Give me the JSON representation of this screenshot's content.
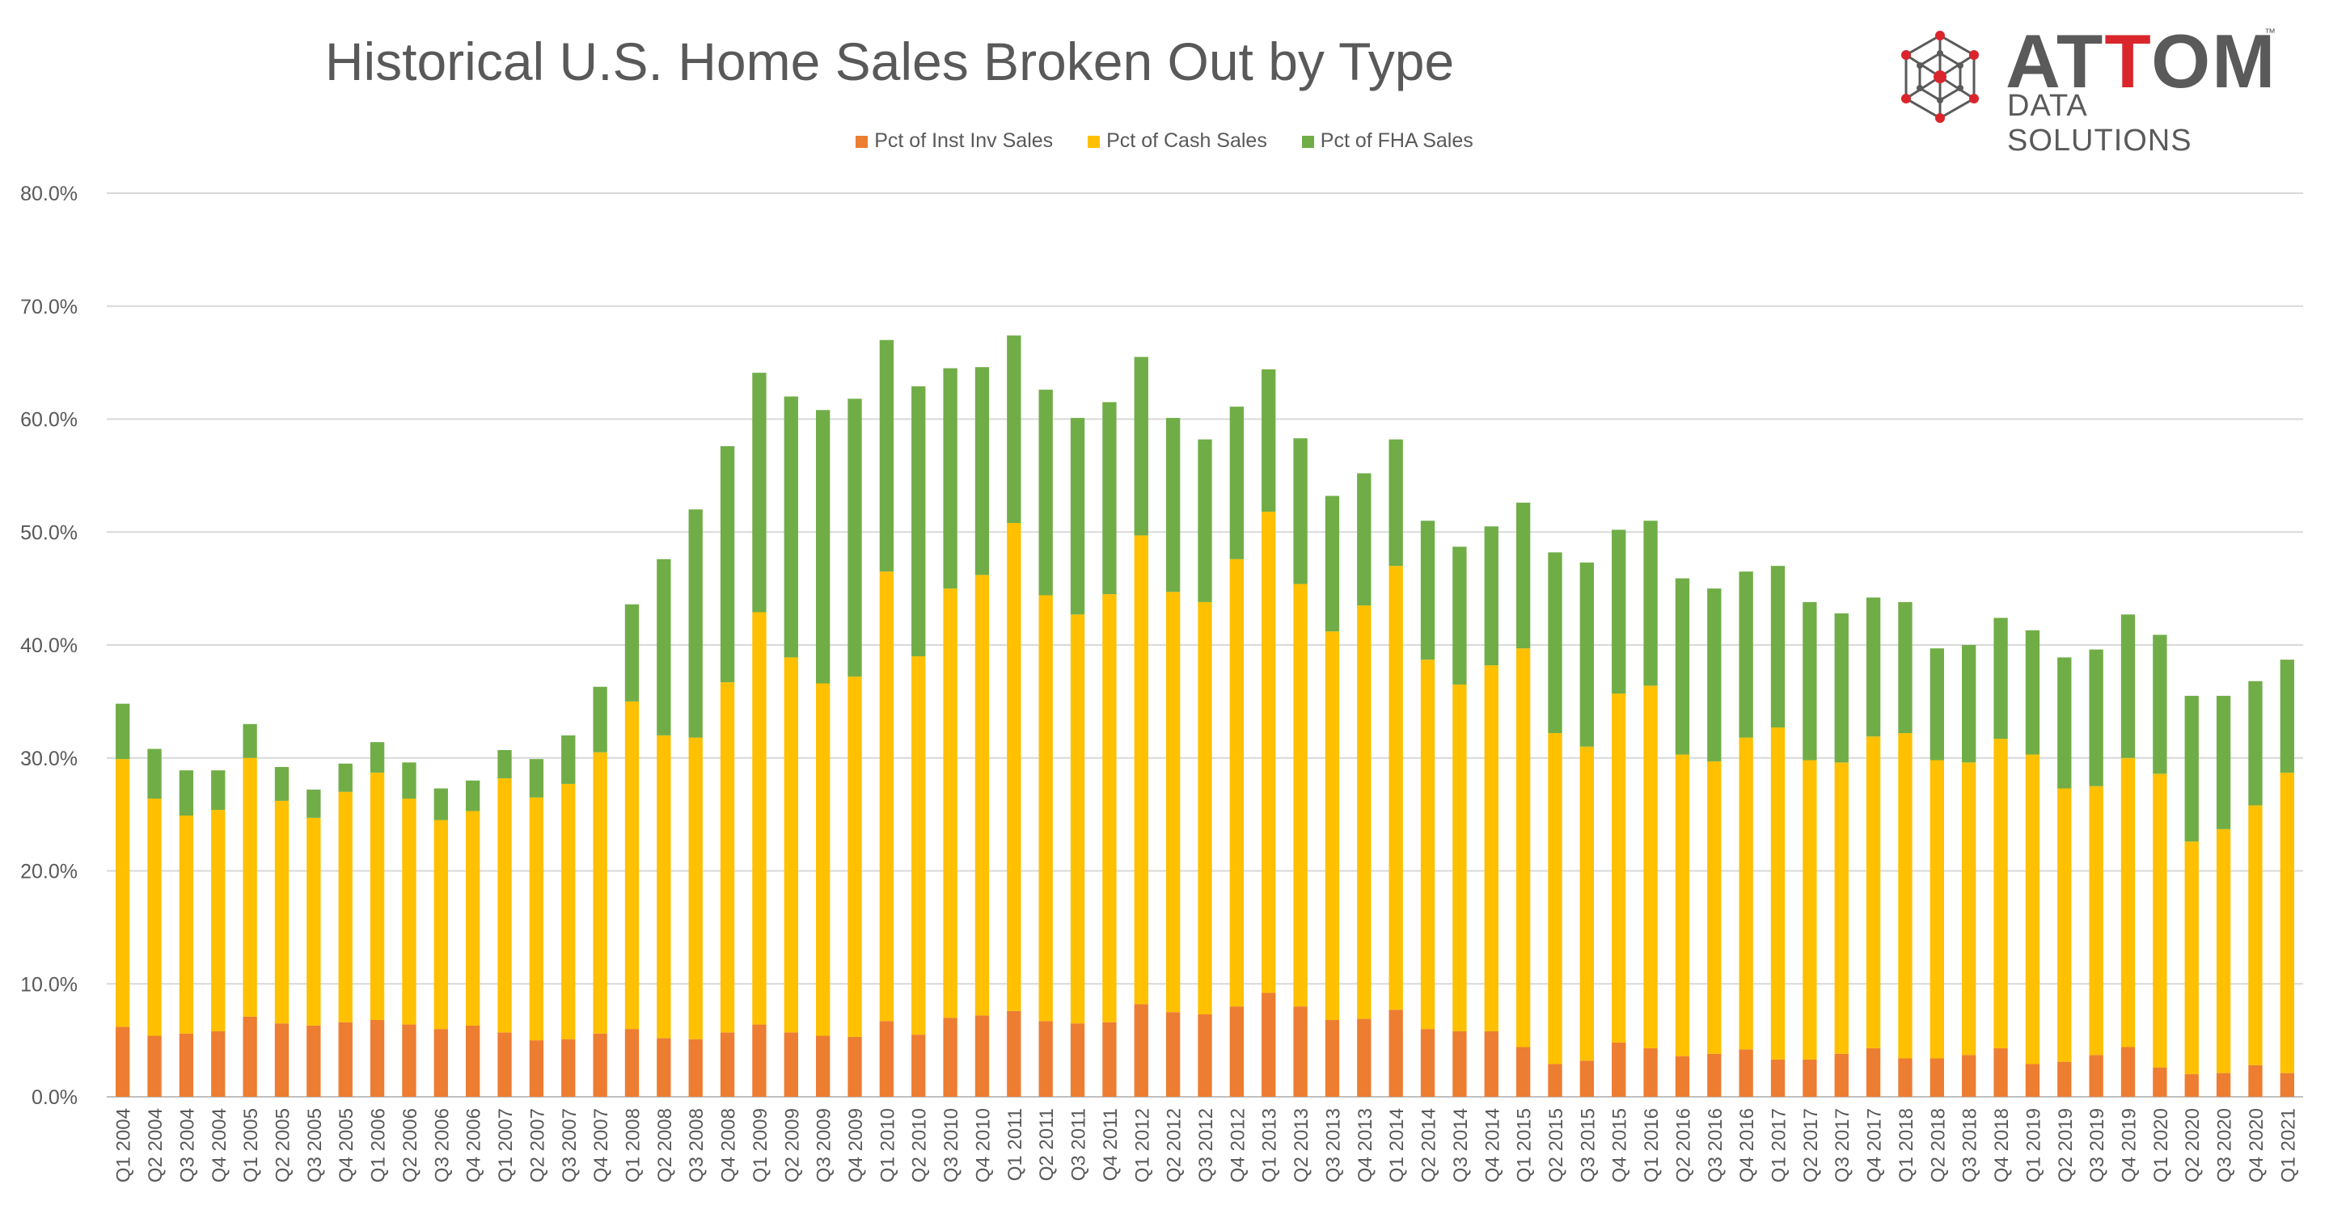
{
  "colors": {
    "inst_inv": "#ED7D31",
    "cash": "#FFC000",
    "fha": "#70AD47",
    "grid": "#D9D9D9",
    "text": "#595959"
  },
  "logo": {
    "word_left": "AT",
    "word_red": "T",
    "word_right": "OM",
    "tm": "™",
    "subtitle": "DATA SOLUTIONS",
    "icon": "attom-network-icon"
  },
  "chart_data": {
    "type": "bar",
    "stacked": true,
    "title": "Historical U.S. Home Sales Broken Out by Type",
    "xlabel": "",
    "ylabel": "",
    "ylim": [
      0,
      80
    ],
    "yticks": [
      "0.0%",
      "10.0%",
      "20.0%",
      "30.0%",
      "40.0%",
      "50.0%",
      "60.0%",
      "70.0%",
      "80.0%"
    ],
    "grid": true,
    "legend_position": "top",
    "categories": [
      "Q1 2004",
      "Q2 2004",
      "Q3 2004",
      "Q4 2004",
      "Q1 2005",
      "Q2 2005",
      "Q3 2005",
      "Q4 2005",
      "Q1 2006",
      "Q2 2006",
      "Q3 2006",
      "Q4 2006",
      "Q1 2007",
      "Q2 2007",
      "Q3 2007",
      "Q4 2007",
      "Q1 2008",
      "Q2 2008",
      "Q3 2008",
      "Q4 2008",
      "Q1 2009",
      "Q2 2009",
      "Q3 2009",
      "Q4 2009",
      "Q1 2010",
      "Q2 2010",
      "Q3 2010",
      "Q4 2010",
      "Q1 2011",
      "Q2 2011",
      "Q3 2011",
      "Q4 2011",
      "Q1 2012",
      "Q2 2012",
      "Q3 2012",
      "Q4 2012",
      "Q1 2013",
      "Q2 2013",
      "Q3 2013",
      "Q4 2013",
      "Q1 2014",
      "Q2 2014",
      "Q3 2014",
      "Q4 2014",
      "Q1 2015",
      "Q2 2015",
      "Q3 2015",
      "Q4 2015",
      "Q1 2016",
      "Q2 2016",
      "Q3 2016",
      "Q4 2016",
      "Q1 2017",
      "Q2 2017",
      "Q3 2017",
      "Q4 2017",
      "Q1 2018",
      "Q2 2018",
      "Q3 2018",
      "Q4 2018",
      "Q1 2019",
      "Q2 2019",
      "Q3 2019",
      "Q4 2019",
      "Q1 2020",
      "Q2 2020",
      "Q3 2020",
      "Q4 2020",
      "Q1 2021"
    ],
    "series": [
      {
        "name": "Pct of Inst Inv Sales",
        "values": [
          6.2,
          5.4,
          5.6,
          5.8,
          7.1,
          6.5,
          6.3,
          6.6,
          6.8,
          6.4,
          6.0,
          6.3,
          5.7,
          5.0,
          5.1,
          5.6,
          6.0,
          5.2,
          5.1,
          5.7,
          6.4,
          5.7,
          5.4,
          5.3,
          6.7,
          5.5,
          7.0,
          7.2,
          7.6,
          6.7,
          6.5,
          6.6,
          8.2,
          7.5,
          7.3,
          8.0,
          9.2,
          8.0,
          6.8,
          6.9,
          7.7,
          6.0,
          5.8,
          5.8,
          4.4,
          2.9,
          3.2,
          4.8,
          4.3,
          3.6,
          3.8,
          4.2,
          3.3,
          3.3,
          3.8,
          4.3,
          3.4,
          3.4,
          3.7,
          4.3,
          2.9,
          3.1,
          3.7,
          4.4,
          2.6,
          2.0,
          2.1,
          2.8,
          2.1
        ]
      },
      {
        "name": "Pct of Cash Sales",
        "values": [
          23.7,
          21.0,
          19.3,
          19.6,
          22.9,
          19.7,
          18.4,
          20.4,
          21.9,
          20.0,
          18.5,
          19.0,
          22.5,
          21.5,
          22.6,
          24.9,
          29.0,
          26.8,
          26.7,
          31.0,
          36.5,
          33.2,
          31.2,
          31.9,
          39.8,
          33.5,
          38.0,
          39.0,
          43.2,
          37.7,
          36.2,
          37.9,
          41.5,
          37.2,
          36.5,
          39.6,
          42.6,
          37.4,
          34.4,
          36.6,
          39.3,
          32.7,
          30.7,
          32.4,
          35.3,
          29.3,
          27.8,
          30.9,
          32.1,
          26.7,
          25.9,
          27.6,
          29.4,
          26.5,
          25.8,
          27.6,
          28.8,
          26.4,
          25.9,
          27.4,
          27.4,
          24.2,
          23.8,
          25.6,
          26.0,
          20.6,
          21.6,
          23.0,
          26.6
        ]
      },
      {
        "name": "Pct of FHA Sales",
        "values": [
          4.9,
          4.4,
          4.0,
          3.5,
          3.0,
          3.0,
          2.5,
          2.5,
          2.7,
          3.2,
          2.8,
          2.7,
          2.5,
          3.4,
          4.3,
          5.8,
          8.6,
          15.6,
          20.2,
          20.9,
          21.2,
          23.1,
          24.2,
          24.6,
          20.5,
          23.9,
          19.5,
          18.4,
          16.6,
          18.2,
          17.4,
          17.0,
          15.8,
          15.4,
          14.4,
          13.5,
          12.6,
          12.9,
          12.0,
          11.7,
          11.2,
          12.3,
          12.2,
          12.3,
          12.9,
          16.0,
          16.3,
          14.5,
          14.6,
          15.6,
          15.3,
          14.7,
          14.3,
          14.0,
          13.2,
          12.3,
          11.6,
          9.9,
          10.4,
          10.7,
          11.0,
          11.6,
          12.1,
          12.7,
          12.3,
          12.9,
          11.8,
          11.0,
          10.0
        ]
      }
    ]
  }
}
